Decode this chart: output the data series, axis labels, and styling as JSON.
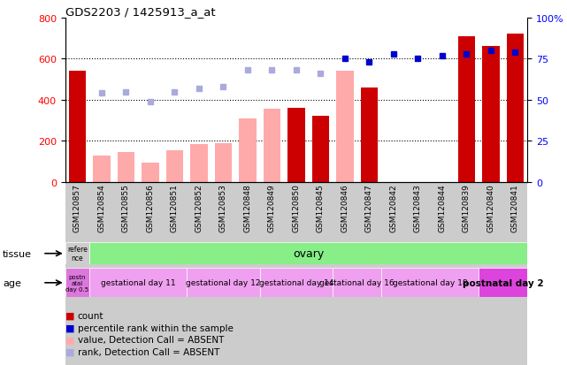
{
  "title": "GDS2203 / 1425913_a_at",
  "samples": [
    "GSM120857",
    "GSM120854",
    "GSM120855",
    "GSM120856",
    "GSM120851",
    "GSM120852",
    "GSM120853",
    "GSM120848",
    "GSM120849",
    "GSM120850",
    "GSM120845",
    "GSM120846",
    "GSM120847",
    "GSM120842",
    "GSM120843",
    "GSM120844",
    "GSM120839",
    "GSM120840",
    "GSM120841"
  ],
  "count_values": [
    540,
    null,
    null,
    null,
    null,
    null,
    null,
    null,
    null,
    360,
    320,
    null,
    460,
    null,
    null,
    null,
    710,
    660,
    720
  ],
  "count_absent": [
    null,
    130,
    145,
    95,
    155,
    185,
    190,
    310,
    355,
    null,
    null,
    540,
    null,
    null,
    null,
    null,
    null,
    null,
    null
  ],
  "rank_values_pct": [
    null,
    null,
    null,
    null,
    null,
    null,
    null,
    null,
    null,
    null,
    null,
    75,
    73,
    78,
    75,
    77,
    78,
    80,
    79
  ],
  "rank_absent_pct": [
    null,
    54,
    55,
    49,
    55,
    57,
    58,
    68,
    68,
    68,
    66,
    null,
    null,
    null,
    null,
    null,
    null,
    null,
    null
  ],
  "ylim": [
    0,
    800
  ],
  "y2lim": [
    0,
    100
  ],
  "yticks": [
    0,
    200,
    400,
    600,
    800
  ],
  "y2ticks": [
    0,
    25,
    50,
    75,
    100
  ],
  "tissue_ref_label": "refere\nnce",
  "tissue_ovary_label": "ovary",
  "age_ref_label": "postn\natal\nday 0.5",
  "age_groups": [
    {
      "label": "gestational day 11",
      "start": 1,
      "end": 5,
      "color": "#f0a0f0"
    },
    {
      "label": "gestational day 12",
      "start": 5,
      "end": 8,
      "color": "#f0a0f0"
    },
    {
      "label": "gestational day 14",
      "start": 8,
      "end": 11,
      "color": "#f0a0f0"
    },
    {
      "label": "gestational day 16",
      "start": 11,
      "end": 13,
      "color": "#f0a0f0"
    },
    {
      "label": "gestational day 18",
      "start": 13,
      "end": 17,
      "color": "#f0a0f0"
    },
    {
      "label": "postnatal day 2",
      "start": 17,
      "end": 19,
      "color": "#dd44dd"
    }
  ],
  "bar_color_count": "#cc0000",
  "bar_color_absent": "#ffaaaa",
  "dot_color_rank": "#0000cc",
  "dot_color_rank_absent": "#aaaadd",
  "tissue_ref_color": "#cccccc",
  "tissue_ovary_color": "#88ee88",
  "age_ref_color": "#dd77dd",
  "age_light_color": "#f0a0f0",
  "xtick_bg_color": "#cccccc",
  "bg_color": "#ffffff",
  "plot_bg_color": "#ffffff"
}
